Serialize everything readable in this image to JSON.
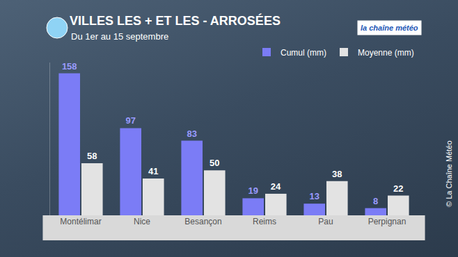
{
  "chart_data": {
    "type": "bar",
    "title": "VILLES LES + ET LES - ARROSÉES",
    "subtitle": "Du 1er au 15 septembre",
    "logo": "la chaîne météo",
    "credit": "© La Chaîne Météo",
    "categories": [
      "Montélimar",
      "Nice",
      "Besançon",
      "Reims",
      "Pau",
      "Perpignan"
    ],
    "series": [
      {
        "name": "Cumul (mm)",
        "color": "#7b7cf6",
        "values": [
          158,
          97,
          83,
          19,
          13,
          8
        ]
      },
      {
        "name": "Moyenne (mm)",
        "color": "#e3e3e3",
        "values": [
          58,
          41,
          50,
          24,
          38,
          22
        ]
      }
    ],
    "ylim": [
      0,
      170
    ],
    "grid": false,
    "legend": "top right",
    "data_labels": true,
    "tick_labels": "x"
  }
}
